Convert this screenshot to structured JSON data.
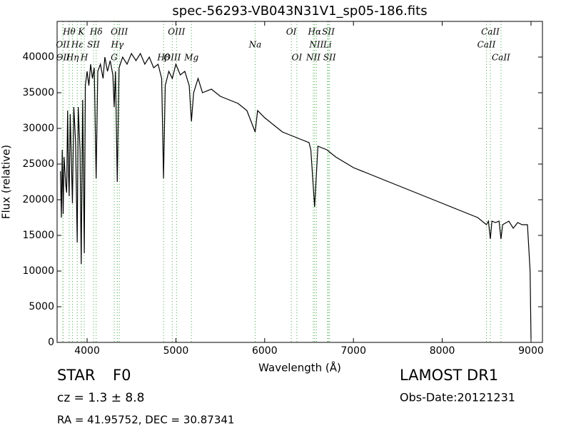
{
  "chart_data": {
    "type": "line",
    "title": "spec-56293-VB043N31V1_sp05-186.fits",
    "x_label": "Wavelength (Å)",
    "y_label": "Flux (relative)",
    "xlim": [
      3662,
      9129
    ],
    "ylim": [
      0,
      45000
    ],
    "xticks": [
      4000,
      5000,
      6000,
      7000,
      8000,
      9000
    ],
    "yticks": [
      0,
      5000,
      10000,
      15000,
      20000,
      25000,
      30000,
      35000,
      40000
    ],
    "grid": false,
    "color": "#000000",
    "line_color": "#44aa44",
    "x": [
      3700,
      3710,
      3720,
      3730,
      3740,
      3760,
      3770,
      3780,
      3790,
      3798,
      3810,
      3835,
      3850,
      3870,
      3889,
      3900,
      3920,
      3934,
      3950,
      3968,
      3980,
      4000,
      4020,
      4040,
      4060,
      4080,
      4102,
      4120,
      4150,
      4180,
      4200,
      4230,
      4260,
      4290,
      4305,
      4320,
      4340,
      4360,
      4400,
      4450,
      4500,
      4550,
      4600,
      4650,
      4700,
      4750,
      4800,
      4840,
      4861,
      4880,
      4920,
      4960,
      5000,
      5050,
      5100,
      5150,
      5175,
      5200,
      5250,
      5300,
      5400,
      5500,
      5600,
      5700,
      5800,
      5893,
      5920,
      6000,
      6100,
      6200,
      6300,
      6400,
      6500,
      6520,
      6563,
      6600,
      6700,
      6800,
      7000,
      7200,
      7400,
      7600,
      7800,
      8000,
      8200,
      8400,
      8498,
      8520,
      8542,
      8560,
      8600,
      8640,
      8662,
      8680,
      8750,
      8800,
      8850,
      8900,
      8960,
      8990,
      9000
    ],
    "values": [
      24000,
      17500,
      27000,
      18000,
      26000,
      22000,
      21000,
      32500,
      24000,
      20500,
      32000,
      19500,
      33000,
      28000,
      14000,
      33000,
      27000,
      11000,
      34000,
      12500,
      36000,
      38000,
      36000,
      39000,
      37000,
      38500,
      23000,
      38000,
      39000,
      37000,
      40000,
      38000,
      39500,
      37500,
      33000,
      38000,
      22500,
      38500,
      40000,
      39000,
      40500,
      39500,
      40500,
      39000,
      40000,
      38500,
      39000,
      37000,
      23000,
      36000,
      38000,
      37000,
      39000,
      37500,
      38000,
      36000,
      31000,
      35000,
      37000,
      35000,
      35500,
      34500,
      34000,
      33500,
      32500,
      29500,
      32500,
      31500,
      30500,
      29500,
      29000,
      28500,
      28000,
      27000,
      19000,
      27500,
      27000,
      26000,
      24500,
      23500,
      22500,
      21500,
      20500,
      19500,
      18500,
      17500,
      16500,
      17000,
      14500,
      17000,
      16800,
      17000,
      14500,
      16500,
      17000,
      16000,
      16800,
      16500,
      16500,
      10000,
      500
    ],
    "line_labels": [
      [
        {
          "label": "Hθ",
          "wavelength": 3798
        },
        {
          "label": "K",
          "wavelength": 3934
        },
        {
          "label": "Hδ",
          "wavelength": 4102
        },
        {
          "label": "OIII",
          "wavelength": 4363
        },
        {
          "label": "OIII",
          "wavelength": 5007
        },
        {
          "label": "OI",
          "wavelength": 6300
        },
        {
          "label": "Hα",
          "wavelength": 6563
        },
        {
          "label": "SII",
          "wavelength": 6717
        },
        {
          "label": "CaII",
          "wavelength": 8542
        }
      ],
      [
        {
          "label": "OII",
          "wavelength": 3727
        },
        {
          "label": "Hε",
          "wavelength": 3889
        },
        {
          "label": "SII",
          "wavelength": 4072
        },
        {
          "label": "Hγ",
          "wavelength": 4340
        },
        {
          "label": "Na",
          "wavelength": 5893
        },
        {
          "label": "NII",
          "wavelength": 6583
        },
        {
          "label": "Li",
          "wavelength": 6708
        },
        {
          "label": "CaII",
          "wavelength": 8498
        }
      ],
      [
        {
          "label": "OII",
          "wavelength": 3729
        },
        {
          "label": "Hη",
          "wavelength": 3835
        },
        {
          "label": "H",
          "wavelength": 3968
        },
        {
          "label": "G",
          "wavelength": 4305
        },
        {
          "label": "Hβ",
          "wavelength": 4861
        },
        {
          "label": "OIII",
          "wavelength": 4959
        },
        {
          "label": "Mg",
          "wavelength": 5175
        },
        {
          "label": "OI",
          "wavelength": 6363
        },
        {
          "label": "NII",
          "wavelength": 6548
        },
        {
          "label": "SII",
          "wavelength": 6731
        },
        {
          "label": "CaII",
          "wavelength": 8662
        }
      ]
    ]
  },
  "footer": {
    "class": "STAR",
    "subclass": "F0",
    "redshift": "cz = 1.3 ± 8.8",
    "coords": "RA = 41.95752, DEC = 30.87341",
    "release": "LAMOST DR1",
    "obs_date": "Obs-Date:20121231"
  }
}
